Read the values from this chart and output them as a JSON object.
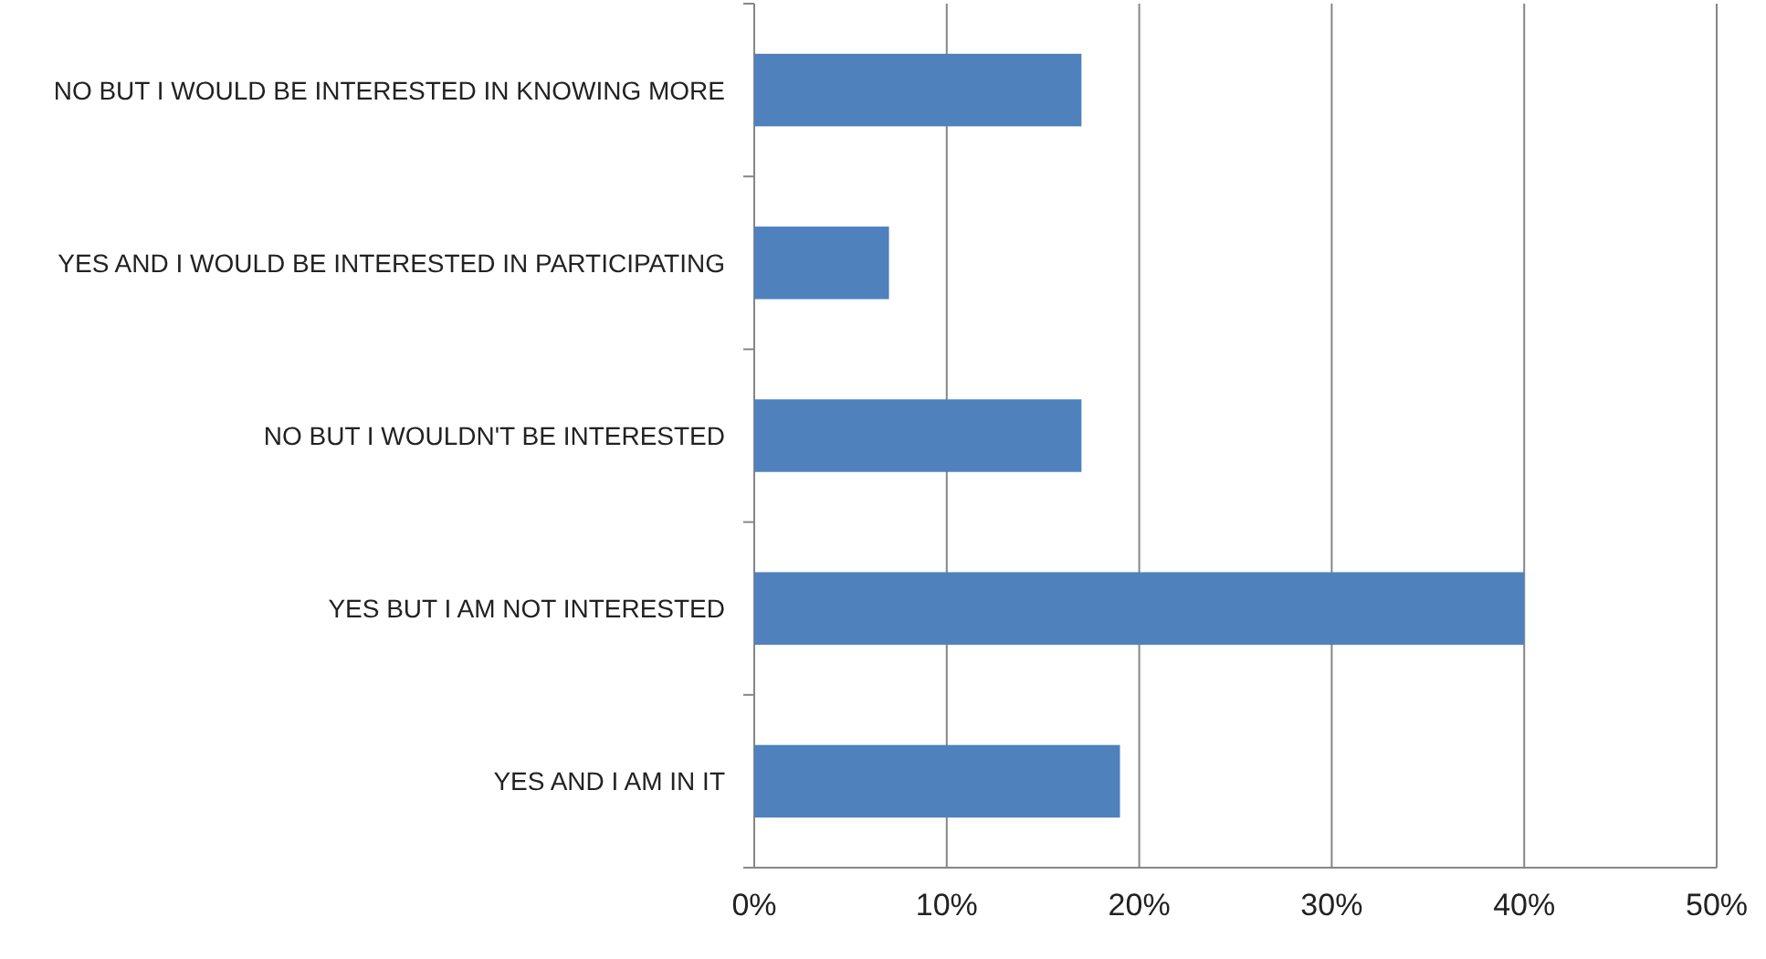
{
  "chart_data": {
    "type": "bar",
    "orientation": "horizontal",
    "categories": [
      "NO BUT I WOULD BE INTERESTED IN KNOWING MORE",
      "YES AND I WOULD BE INTERESTED IN PARTICIPATING",
      "NO BUT I WOULDN'T BE INTERESTED",
      "YES BUT I AM NOT INTERESTED",
      "YES AND I AM IN IT"
    ],
    "values": [
      17,
      7,
      17,
      40,
      19
    ],
    "color": "#4f81bd",
    "xlim": [
      0,
      50
    ],
    "xticks": [
      {
        "value": 0,
        "label": "0%"
      },
      {
        "value": 10,
        "label": "10%"
      },
      {
        "value": 20,
        "label": "20%"
      },
      {
        "value": 30,
        "label": "30%"
      },
      {
        "value": 40,
        "label": "40%"
      },
      {
        "value": 50,
        "label": "50%"
      }
    ],
    "grid": "x"
  }
}
